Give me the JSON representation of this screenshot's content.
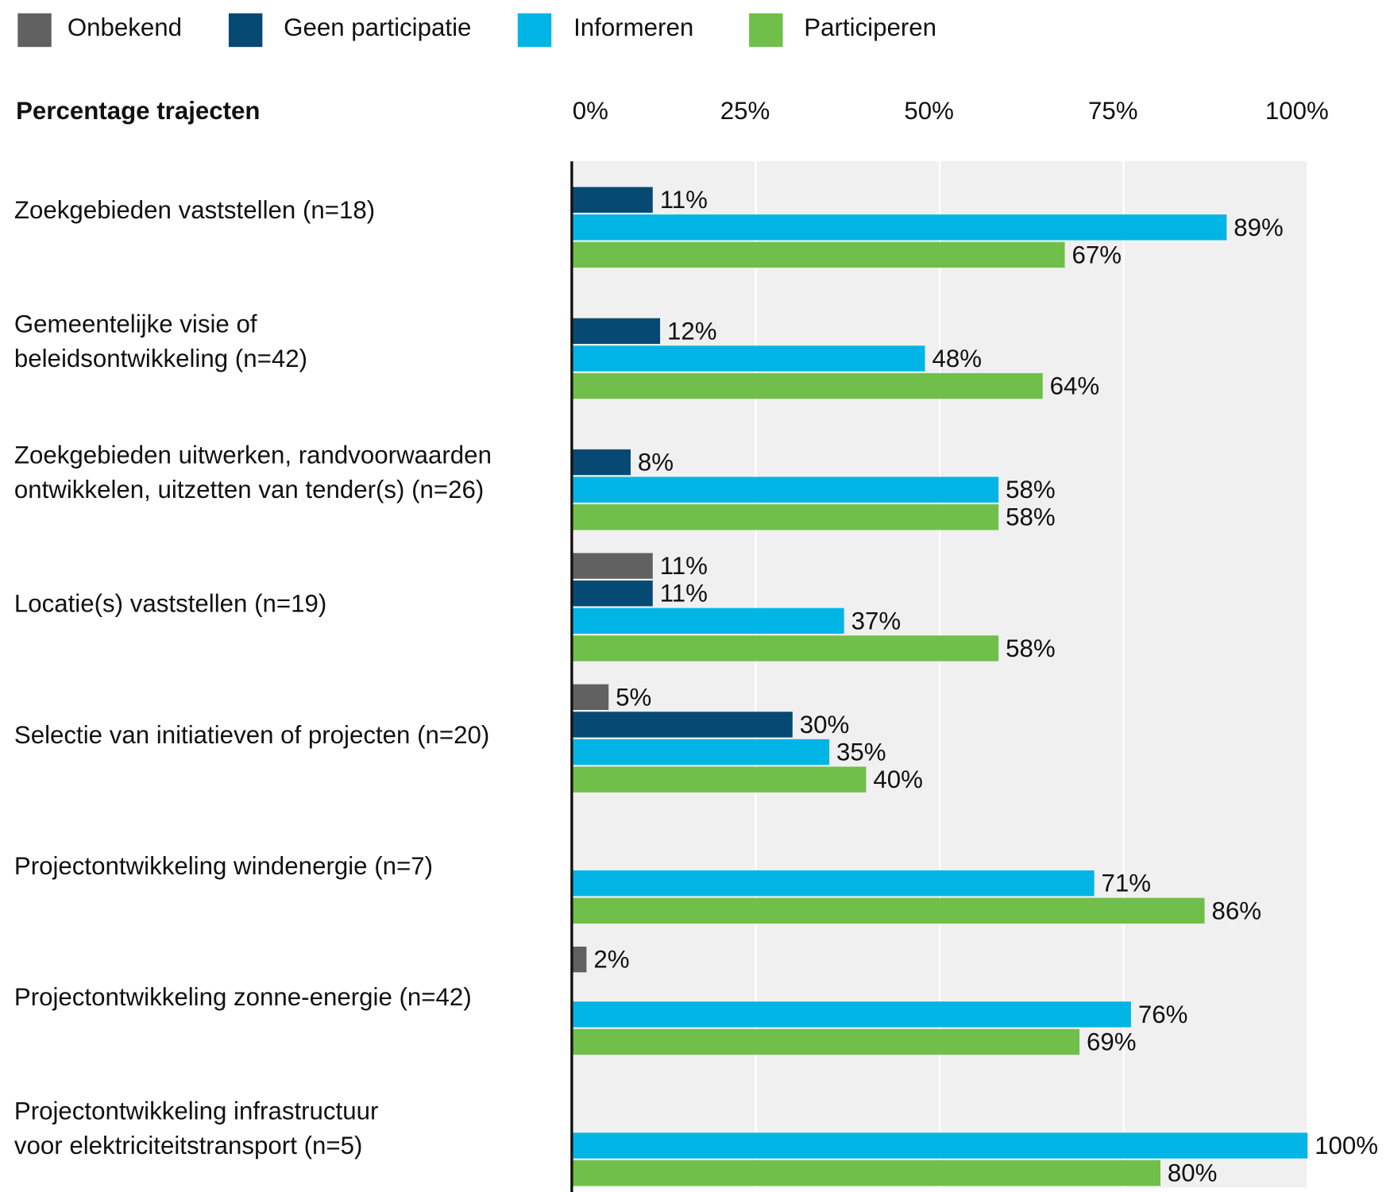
{
  "chart_data": {
    "type": "bar",
    "orientation": "horizontal",
    "axis_title": "Percentage trajecten",
    "categories": [
      "Zoekgebieden vaststellen (n=18)",
      "Gemeentelijke visie of\nbeleidsontwikkeling (n=42)",
      "Zoekgebieden uitwerken, randvoorwaarden\nontwikkelen, uitzetten van tender(s) (n=26)",
      "Locatie(s) vaststellen (n=19)",
      "Selectie van initiatieven of projecten (n=20)",
      "Projectontwikkeling windenergie (n=7)",
      "Projectontwikkeling zonne-energie (n=42)",
      "Projectontwikkeling infrastructuur\nvoor elektriciteitstransport (n=5)"
    ],
    "series": [
      {
        "name": "Onbekend",
        "color": "#616161",
        "values": [
          null,
          null,
          null,
          11,
          5,
          null,
          2,
          null
        ],
        "value_labels": [
          null,
          null,
          null,
          "11%",
          "5%",
          null,
          "2%",
          null
        ]
      },
      {
        "name": "Geen participatie",
        "color": "#064a73",
        "values": [
          11,
          12,
          8,
          11,
          30,
          null,
          null,
          null
        ],
        "value_labels": [
          "11%",
          "12%",
          "8%",
          "11%",
          "30%",
          null,
          null,
          null
        ]
      },
      {
        "name": "Informeren",
        "color": "#00b5e6",
        "values": [
          89,
          48,
          58,
          37,
          35,
          71,
          76,
          100
        ],
        "value_labels": [
          "89%",
          "48%",
          "58%",
          "37%",
          "35%",
          "71%",
          "76%",
          "100%"
        ]
      },
      {
        "name": "Participeren",
        "color": "#70bf4a",
        "values": [
          67,
          64,
          58,
          58,
          40,
          86,
          69,
          80
        ],
        "value_labels": [
          "67%",
          "64%",
          "58%",
          "58%",
          "40%",
          "86%",
          "69%",
          "80%"
        ]
      }
    ],
    "xlim": [
      0,
      100
    ],
    "xticks": [
      {
        "value": 0,
        "label": "0%"
      },
      {
        "value": 25,
        "label": "25%"
      },
      {
        "value": 50,
        "label": "50%"
      },
      {
        "value": 75,
        "label": "75%"
      },
      {
        "value": 100,
        "label": "100%"
      }
    ],
    "grid": true,
    "legend": "top"
  }
}
